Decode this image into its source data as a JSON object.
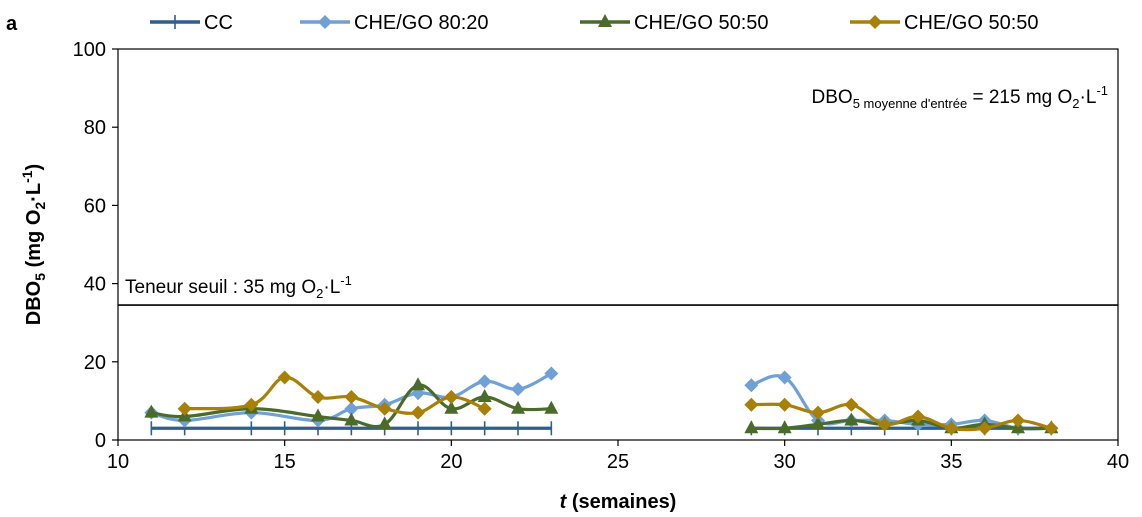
{
  "chart_data": {
    "type": "line",
    "panel_label": "a",
    "xlabel_italic": "t",
    "xlabel_rest": " (semaines)",
    "ylabel_main": "DBO",
    "ylabel_sub": "5",
    "ylabel_unit_open": " (mg O",
    "ylabel_unit_sub": "2",
    "ylabel_unit_mid": "·L",
    "ylabel_unit_sup": "-1",
    "ylabel_unit_close": ")",
    "xlim": [
      10,
      40
    ],
    "ylim": [
      0,
      100
    ],
    "xticks": [
      "10",
      "15",
      "20",
      "25",
      "30",
      "35",
      "40"
    ],
    "yticks": [
      "0",
      "20",
      "40",
      "60",
      "80",
      "100"
    ],
    "xtick_values": [
      10,
      15,
      20,
      25,
      30,
      35,
      40
    ],
    "ytick_values": [
      0,
      20,
      40,
      60,
      80,
      100
    ],
    "legend_position": "top",
    "threshold": {
      "value": 34.5,
      "label_main": "Teneur seuil : 35 mg O",
      "label_sub": "2",
      "label_mid": "·L",
      "label_sup": "-1"
    },
    "inlet_annotation": {
      "main": "DBO",
      "sub": "5 moyenne d'entrée",
      "mid": " = 215 mg O",
      "sub2": "2",
      "mid2": "·L",
      "sup": "-1"
    },
    "series": [
      {
        "name": "CC",
        "color": "#2E5F8F",
        "marker": "cross",
        "segments": [
          [
            [
              11,
              3
            ],
            [
              12,
              3
            ],
            [
              14,
              3
            ],
            [
              15,
              3
            ],
            [
              16,
              3
            ],
            [
              17,
              3
            ],
            [
              18,
              3
            ],
            [
              19,
              3
            ],
            [
              20,
              3
            ],
            [
              21,
              3
            ],
            [
              22,
              3
            ],
            [
              23,
              3
            ]
          ],
          [
            [
              29,
              3
            ],
            [
              30,
              3
            ],
            [
              31,
              3
            ],
            [
              32,
              3
            ],
            [
              33,
              3
            ],
            [
              34,
              3
            ],
            [
              35,
              3
            ],
            [
              36,
              3
            ],
            [
              37,
              3
            ],
            [
              38,
              3
            ]
          ]
        ]
      },
      {
        "name": "CHE/GO 80:20",
        "color": "#6FA1D6",
        "marker": "diamond",
        "segments": [
          [
            [
              11,
              7
            ],
            [
              12,
              5
            ],
            [
              14,
              7
            ],
            [
              16,
              5
            ],
            [
              17,
              8
            ],
            [
              18,
              9
            ],
            [
              19,
              12
            ],
            [
              20,
              11
            ],
            [
              21,
              15
            ],
            [
              22,
              13
            ],
            [
              23,
              17
            ]
          ],
          [
            [
              29,
              14
            ],
            [
              30,
              16
            ],
            [
              31,
              5
            ],
            [
              32,
              5
            ],
            [
              33,
              5
            ],
            [
              34,
              4
            ],
            [
              35,
              4
            ],
            [
              36,
              5
            ],
            [
              37,
              3
            ],
            [
              38,
              3
            ]
          ]
        ]
      },
      {
        "name": "CHE/GO 50:50",
        "color": "#4B6B2A",
        "marker": "triangle",
        "segments": [
          [
            [
              11,
              7
            ],
            [
              12,
              6
            ],
            [
              14,
              8
            ],
            [
              16,
              6
            ],
            [
              17,
              5
            ],
            [
              18,
              4
            ],
            [
              19,
              14
            ],
            [
              20,
              8
            ],
            [
              21,
              11
            ],
            [
              22,
              8
            ],
            [
              23,
              8
            ]
          ],
          [
            [
              29,
              3
            ],
            [
              30,
              3
            ],
            [
              31,
              4
            ],
            [
              32,
              5
            ],
            [
              33,
              4
            ],
            [
              34,
              5
            ],
            [
              35,
              3
            ],
            [
              36,
              4
            ],
            [
              37,
              3
            ],
            [
              38,
              3
            ]
          ]
        ]
      },
      {
        "name": "CHE/GO 50:50",
        "color": "#A88008",
        "marker": "diamond",
        "segments": [
          [
            [
              12,
              8
            ],
            [
              14,
              9
            ],
            [
              15,
              16
            ],
            [
              16,
              11
            ],
            [
              17,
              11
            ],
            [
              18,
              8
            ],
            [
              19,
              7
            ],
            [
              20,
              11
            ],
            [
              21,
              8
            ]
          ],
          [
            [
              29,
              9
            ],
            [
              30,
              9
            ],
            [
              31,
              7
            ],
            [
              32,
              9
            ],
            [
              33,
              4
            ],
            [
              34,
              6
            ],
            [
              35,
              3
            ],
            [
              36,
              3
            ],
            [
              37,
              5
            ],
            [
              38,
              3
            ]
          ]
        ]
      }
    ]
  }
}
